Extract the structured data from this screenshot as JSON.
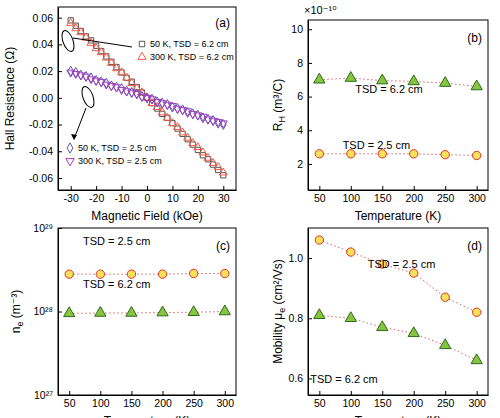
{
  "chart_data": [
    {
      "type": "scatter",
      "panel_label": "(a)",
      "x_label": "Magnetic Field (kOe)",
      "y_label": {
        "main": "Hall Resistance (Ω)",
        "sub": "",
        "rest": ""
      },
      "xlim": [
        -35,
        35
      ],
      "xticks": [
        -30,
        -20,
        -10,
        0,
        10,
        20,
        30
      ],
      "ylim": [
        -0.069,
        0.068
      ],
      "yticks": [
        -0.06,
        -0.04,
        -0.02,
        {
          "value": 0,
          "label": "0.00"
        },
        0.02,
        0.04,
        0.06
      ],
      "x": [
        -30,
        -28,
        -26,
        -24,
        -22,
        -20,
        -18,
        -16,
        -14,
        -12,
        -10,
        -8,
        -6,
        -4,
        -2,
        0,
        2,
        4,
        6,
        8,
        10,
        12,
        14,
        16,
        18,
        20,
        22,
        24,
        26,
        28,
        30
      ],
      "series": [
        {
          "name": "50 K, TSD = 6.2 cm",
          "color": "#555555",
          "marker": "open-square",
          "values": [
            0.058,
            0.054,
            0.05,
            0.046,
            0.043,
            0.039,
            0.035,
            0.031,
            0.027,
            0.023,
            0.019,
            0.015,
            0.012,
            0.008,
            0.004,
            0.0,
            -0.004,
            -0.008,
            -0.012,
            -0.015,
            -0.019,
            -0.023,
            -0.027,
            -0.031,
            -0.035,
            -0.039,
            -0.043,
            -0.046,
            -0.05,
            -0.054,
            -0.058
          ]
        },
        {
          "name": "300 K, TSD = 6.2 cm",
          "color": "#f0604a",
          "marker": "open-triangle",
          "values": [
            0.056,
            0.052,
            0.049,
            0.045,
            0.041,
            0.037,
            0.034,
            0.03,
            0.026,
            0.022,
            0.019,
            0.015,
            0.011,
            0.007,
            0.004,
            0.0,
            -0.004,
            -0.007,
            -0.011,
            -0.015,
            -0.019,
            -0.022,
            -0.026,
            -0.03,
            -0.034,
            -0.037,
            -0.041,
            -0.045,
            -0.049,
            -0.052,
            -0.056
          ]
        },
        {
          "name": "50 K, TSD = 2.5 cm",
          "color": "#5a5aa8",
          "marker": "open-diamond",
          "values": [
            0.02,
            0.019,
            0.017,
            0.016,
            0.015,
            0.013,
            0.012,
            0.011,
            0.009,
            0.008,
            0.007,
            0.005,
            0.004,
            0.003,
            0.001,
            0.0,
            -0.001,
            -0.003,
            -0.004,
            -0.005,
            -0.007,
            -0.008,
            -0.009,
            -0.011,
            -0.012,
            -0.013,
            -0.015,
            -0.016,
            -0.017,
            -0.019,
            -0.02
          ]
        },
        {
          "name": "300 K, TSD = 2.5 cm",
          "color": "#a040c0",
          "marker": "open-triangle-down",
          "values": [
            0.019,
            0.018,
            0.017,
            0.016,
            0.014,
            0.013,
            0.012,
            0.01,
            0.009,
            0.008,
            0.006,
            0.005,
            0.004,
            0.003,
            0.001,
            0.0,
            -0.001,
            -0.003,
            -0.004,
            -0.005,
            -0.006,
            -0.008,
            -0.009,
            -0.01,
            -0.012,
            -0.013,
            -0.014,
            -0.016,
            -0.017,
            -0.018,
            -0.019
          ]
        }
      ]
    },
    {
      "type": "line",
      "panel_label": "(b)",
      "line_style": "dotted",
      "x_label": "Temperature (K)",
      "y_label": {
        "main": "R",
        "sub": "H",
        "rest": " (m³/C)"
      },
      "y_multiplier": "×10⁻¹⁰",
      "xlim": [
        32,
        318
      ],
      "xticks": [
        50,
        100,
        150,
        200,
        250,
        300
      ],
      "ylim": [
        4.5e-11,
        1.055e-09
      ],
      "yticks": [
        {
          "value": 2e-10,
          "label": "2"
        },
        {
          "value": 4e-10,
          "label": "4"
        },
        {
          "value": 6e-10,
          "label": "6"
        },
        {
          "value": 8e-10,
          "label": "8"
        },
        {
          "value": 1e-09,
          "label": "10"
        }
      ],
      "x": [
        50,
        100,
        150,
        200,
        250,
        300
      ],
      "series": [
        {
          "name": "TSD = 6.2 cm",
          "color": "#86c441",
          "marker": "triangle",
          "values": [
            7e-10,
            7.1e-10,
            6.95e-10,
            6.9e-10,
            6.8e-10,
            6.6e-10
          ]
        },
        {
          "name": "TSD = 2.5 cm",
          "color": "#f7e15a",
          "marker": "circle",
          "values": [
            2.6e-10,
            2.6e-10,
            2.6e-10,
            2.6e-10,
            2.55e-10,
            2.5e-10
          ]
        }
      ]
    },
    {
      "type": "line",
      "panel_label": "(c)",
      "line_style": "dotted",
      "log": "y",
      "x_label": "Temperature (K)",
      "y_label": {
        "main": "n",
        "sub": "e",
        "rest": " (m⁻³)"
      },
      "xlim": [
        32,
        318
      ],
      "xticks": [
        50,
        100,
        150,
        200,
        250,
        300
      ],
      "ylim": [
        1e+27,
        1e+29
      ],
      "yticks": [
        {
          "value": 1e+27,
          "label": "10²⁷"
        },
        {
          "value": 1e+28,
          "label": "10²⁸"
        },
        {
          "value": 1e+29,
          "label": "10²⁹"
        }
      ],
      "x": [
        50,
        100,
        150,
        200,
        250,
        300
      ],
      "series": [
        {
          "name": "TSD = 2.5 cm",
          "color": "#f7e15a",
          "marker": "circle",
          "values": [
            2.8e+28,
            2.8e+28,
            2.8e+28,
            2.8e+28,
            2.85e+28,
            2.85e+28
          ]
        },
        {
          "name": "TSD = 6.2 cm",
          "color": "#86c441",
          "marker": "triangle",
          "values": [
            9.5e+27,
            9.6e+27,
            9.6e+27,
            9.7e+27,
            9.8e+27,
            1e+28
          ]
        }
      ]
    },
    {
      "type": "line",
      "panel_label": "(d)",
      "line_style": "dotted",
      "x_label": "Temperature (K)",
      "y_label": {
        "main": "Mobility μ",
        "sub": "e",
        "rest": " (cm²/Vs)"
      },
      "xlim": [
        32,
        318
      ],
      "xticks": [
        50,
        100,
        150,
        200,
        250,
        300
      ],
      "ylim": [
        0.545,
        1.1
      ],
      "yticks": [
        0.6,
        0.8,
        {
          "value": 1,
          "label": "1.0"
        }
      ],
      "x": [
        50,
        100,
        150,
        200,
        250,
        300
      ],
      "series": [
        {
          "name": "TSD = 2.5 cm",
          "color": "#f7e15a",
          "marker": "circle",
          "values": [
            1.06,
            1.02,
            0.98,
            0.95,
            0.87,
            0.82
          ]
        },
        {
          "name": "TSD = 6.2 cm",
          "color": "#86c441",
          "marker": "triangle",
          "values": [
            0.81,
            0.8,
            0.77,
            0.75,
            0.71,
            0.66
          ]
        }
      ]
    }
  ]
}
